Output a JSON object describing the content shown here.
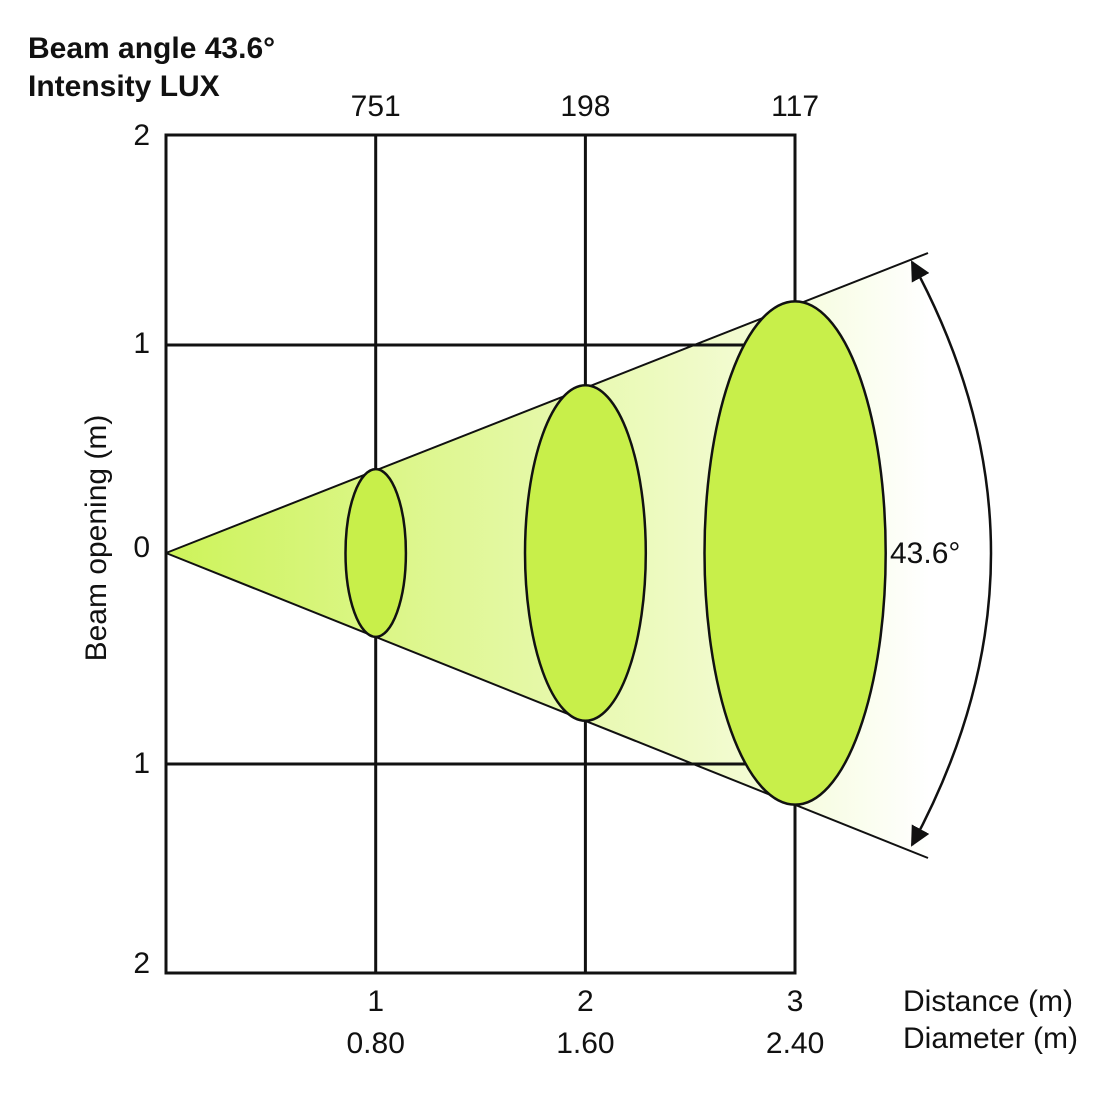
{
  "title": [
    "Beam angle  43.6°",
    "Intensity LUX"
  ],
  "y_axis": {
    "label": "Beam opening (m)",
    "ticks": [
      "2",
      "1",
      "0",
      "1",
      "2"
    ]
  },
  "x_axis": {
    "distance_label": "Distance (m)",
    "diameter_label": "Diameter (m)"
  },
  "points": [
    {
      "distance": "1",
      "diameter": "0.80",
      "lux": "751"
    },
    {
      "distance": "2",
      "diameter": "1.60",
      "lux": "198"
    },
    {
      "distance": "3",
      "diameter": "2.40",
      "lux": "117"
    }
  ],
  "angle_label": "43.6°"
}
